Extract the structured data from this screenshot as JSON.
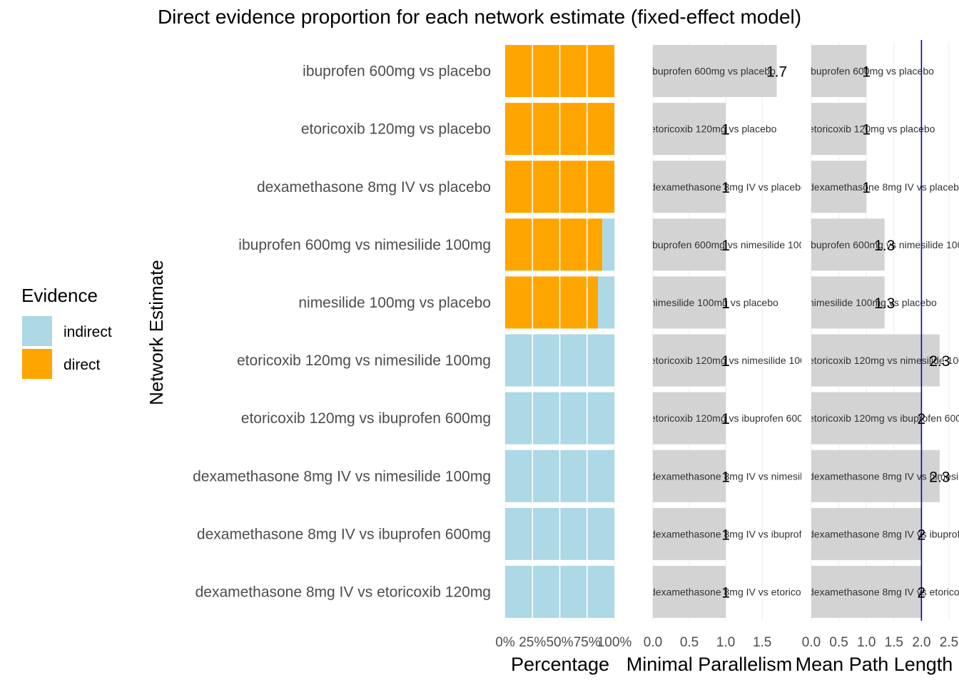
{
  "chart_data": {
    "type": "bar",
    "title": "Direct evidence proportion for each network estimate (fixed-effect model)",
    "ylabel": "Network Estimate",
    "categories": [
      "ibuprofen 600mg vs placebo",
      "etoricoxib 120mg vs placebo",
      "dexamethasone 8mg IV vs placebo",
      "ibuprofen 600mg vs nimesilide 100mg",
      "nimesilide 100mg vs placebo",
      "etoricoxib 120mg vs nimesilide 100mg",
      "etoricoxib 120mg vs ibuprofen 600mg",
      "dexamethasone 8mg IV vs nimesilide 100mg",
      "dexamethasone 8mg IV vs ibuprofen 600mg",
      "dexamethasone 8mg IV vs etoricoxib 120mg"
    ],
    "legend": {
      "title": "Evidence",
      "position": "left",
      "entries": [
        {
          "name": "indirect",
          "color": "#ADD8E6"
        },
        {
          "name": "direct",
          "color": "#FFA500"
        }
      ]
    },
    "panels": [
      {
        "type": "stacked-bar",
        "xlabel": "Percentage",
        "xlim": [
          0,
          1
        ],
        "ticks": [
          0,
          0.25,
          0.5,
          0.75,
          1
        ],
        "tick_labels": [
          "0%",
          "25%",
          "50%",
          "75%",
          "100%"
        ],
        "series": [
          {
            "name": "direct",
            "values": [
              1,
              1,
              1,
              0.89,
              0.85,
              0,
              0,
              0,
              0,
              0
            ]
          },
          {
            "name": "indirect",
            "values": [
              0,
              0,
              0,
              0.11,
              0.15,
              1,
              1,
              1,
              1,
              1
            ]
          }
        ]
      },
      {
        "type": "bar",
        "xlabel": "Minimal Parallelism",
        "xlim": [
          0,
          1.9
        ],
        "ticks": [
          0,
          0.5,
          1,
          1.5
        ],
        "tick_labels": [
          "0.0",
          "0.5",
          "1.0",
          "1.5"
        ],
        "values": [
          1.7,
          1,
          1,
          1,
          1,
          1,
          1,
          1,
          1,
          1
        ],
        "value_labels": [
          "1.7",
          "1",
          "1",
          "1",
          "1",
          "1",
          "1",
          "1",
          "1",
          "1"
        ]
      },
      {
        "type": "bar",
        "xlabel": "Mean Path Length",
        "xlim": [
          0,
          2.5
        ],
        "ticks": [
          0,
          0.5,
          1,
          1.5,
          2,
          2.5
        ],
        "tick_labels": [
          "0.0",
          "0.5",
          "1.0",
          "1.5",
          "2.0",
          "2.5"
        ],
        "reference_line": 2,
        "values": [
          1,
          1,
          1,
          1.33,
          1.33,
          2.33,
          2,
          2.33,
          2,
          2
        ],
        "value_labels": [
          "1",
          "1",
          "1",
          "1.3",
          "1.3",
          "2.3",
          "2",
          "2.3",
          "2",
          "2"
        ]
      }
    ],
    "colors": {
      "direct": "#FFA500",
      "indirect": "#ADD8E6",
      "bar": "#D3D3D3",
      "reference_line": "#0000CC"
    }
  }
}
